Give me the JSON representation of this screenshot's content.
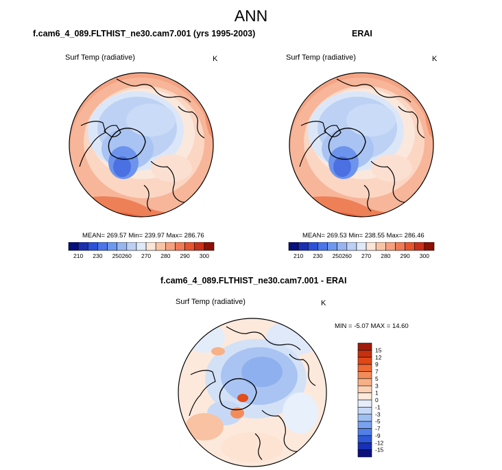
{
  "title": "ANN",
  "panels": [
    {
      "title": "f.cam6_4_089.FLTHIST_ne30.cam7.001 (yrs 1995-2003)",
      "variable": "Surf Temp (radiative)",
      "units": "K",
      "stats": "MEAN= 269.57  Min= 239.97  Max= 286.76",
      "colorbar": {
        "labels": [
          "210",
          "230",
          "250",
          "260",
          "270",
          "280",
          "290",
          "300"
        ],
        "colors": [
          "#08107a",
          "#1a2fb0",
          "#2c50d8",
          "#4a76ea",
          "#6e98ee",
          "#97b6f0",
          "#bcd0f3",
          "#deeaf8",
          "#fbe5d6",
          "#f9c4a6",
          "#f6a07e",
          "#f07a56",
          "#e55530",
          "#c9301a",
          "#8c1004"
        ]
      }
    },
    {
      "title": "ERAI",
      "variable": "Surf Temp (radiative)",
      "units": "K",
      "stats": "MEAN= 269.53  Min= 238.55  Max= 286.46",
      "colorbar": {
        "labels": [
          "210",
          "230",
          "250",
          "260",
          "270",
          "280",
          "290",
          "300"
        ],
        "colors": [
          "#08107a",
          "#1a2fb0",
          "#2c50d8",
          "#4a76ea",
          "#6e98ee",
          "#97b6f0",
          "#bcd0f3",
          "#deeaf8",
          "#fbe5d6",
          "#f9c4a6",
          "#f6a07e",
          "#f07a56",
          "#e55530",
          "#c9301a",
          "#8c1004"
        ]
      }
    },
    {
      "title": "f.cam6_4_089.FLTHIST_ne30.cam7.001 - ERAI",
      "variable": "Surf Temp (radiative)",
      "units": "K",
      "stats": "MIN =  -5.07 MAX =  14.60",
      "colorbar": {
        "labels": [
          "15",
          "12",
          "9",
          "7",
          "5",
          "3",
          "1",
          "0",
          "-1",
          "-3",
          "-5",
          "-7",
          "-9",
          "-12",
          "-15"
        ],
        "colors": [
          "#a01c0a",
          "#c6300f",
          "#e04818",
          "#ee6a34",
          "#f48c5a",
          "#f8b086",
          "#fbd0b4",
          "#fdeadc",
          "#e6eefa",
          "#c6d8f6",
          "#9ebff2",
          "#7aa2ee",
          "#5180e6",
          "#2f58d6",
          "#1830b4",
          "#0c107e"
        ]
      }
    }
  ]
}
